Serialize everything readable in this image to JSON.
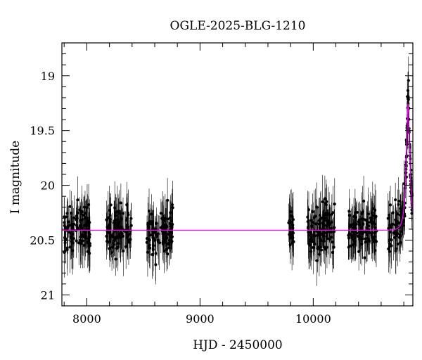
{
  "chart_data": {
    "type": "scatter",
    "title": "OGLE-2025-BLG-1210",
    "xlabel": "HJD - 2450000",
    "ylabel": "I magnitude",
    "xlim": [
      7780,
      10880
    ],
    "ylim": [
      21.1,
      18.7
    ],
    "y_inverted": true,
    "x_ticks": [
      8000,
      9000,
      10000
    ],
    "y_ticks": [
      19,
      19.5,
      20,
      20.5,
      21
    ],
    "y_tick_labels": [
      "19",
      "19.5",
      "20",
      "20.5",
      "21"
    ],
    "grid": false,
    "baseline_magnitude": 20.41,
    "observing_seasons": [
      {
        "start": 7800,
        "end": 8030
      },
      {
        "start": 8170,
        "end": 8400
      },
      {
        "start": 8530,
        "end": 8760
      },
      {
        "start": 9780,
        "end": 9830
      },
      {
        "start": 9950,
        "end": 10190
      },
      {
        "start": 10310,
        "end": 10560
      },
      {
        "start": 10660,
        "end": 10875
      }
    ],
    "baseline_scatter_mag": 0.17,
    "typical_error_mag": 0.17,
    "event": {
      "peak_hjd": 10838,
      "peak_mag": 19.25,
      "rise_start_hjd": 10770
    },
    "series": [
      {
        "marker": "dot",
        "color": "#000000"
      },
      {
        "style": "line",
        "color": "#ff00ff"
      }
    ]
  }
}
